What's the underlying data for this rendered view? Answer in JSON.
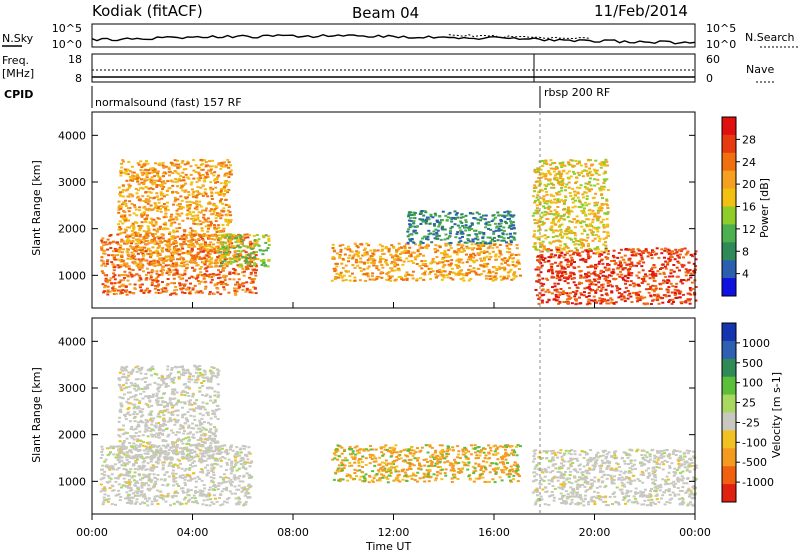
{
  "header": {
    "radar": "Kodiak (fitACF)",
    "beam": "Beam 04",
    "date": "11/Feb/2014"
  },
  "param_panel": {
    "nsky_label": "N.Sky",
    "nsearch_label": "N.Search",
    "noise_ticks_left": [
      "10^5",
      "10^0"
    ],
    "noise_ticks_right": [
      "10^5",
      "10^0"
    ],
    "freq_label_line1": "Freq.",
    "freq_label_line2": "[MHz]",
    "freq_ticks": [
      "18",
      "8"
    ],
    "nave_label": "Nave",
    "nave_ticks": [
      "60",
      "0"
    ],
    "cpid_label": "CPID",
    "cpid_segments": [
      {
        "text": "normalsound (fast) 157 RF",
        "start_hour": 0
      },
      {
        "text": "rbsp 200 RF",
        "start_hour": 18
      }
    ]
  },
  "time_axis": {
    "label": "Time UT",
    "ticks": [
      "00:00",
      "04:00",
      "08:00",
      "12:00",
      "16:00",
      "20:00",
      "00:00"
    ]
  },
  "chart_data": [
    {
      "type": "heatmap",
      "title": "Power",
      "xlabel": "Time UT",
      "ylabel": "Slant Range [km]",
      "xlim": [
        0,
        24
      ],
      "ylim": [
        300,
        4500
      ],
      "y_ticks": [
        1000,
        2000,
        3000,
        4000
      ],
      "colorbar": {
        "label": "Power [dB]",
        "ticks": [
          "4",
          "8",
          "12",
          "16",
          "20",
          "24",
          "28"
        ],
        "colors": [
          "#1010e0",
          "#2a5fb0",
          "#2e8b57",
          "#4caf50",
          "#8fce2a",
          "#f2c010",
          "#f5a020",
          "#f07010",
          "#e83a10",
          "#e01010"
        ]
      },
      "regions": [
        {
          "t": [
            0.3,
            6.5
          ],
          "r": [
            600,
            1900
          ],
          "level": 24
        },
        {
          "t": [
            1.0,
            5.5
          ],
          "r": [
            1200,
            3500
          ],
          "level": 20
        },
        {
          "t": [
            5.0,
            7.0
          ],
          "r": [
            1200,
            1900
          ],
          "level": 12
        },
        {
          "t": [
            9.5,
            17.0
          ],
          "r": [
            900,
            1700
          ],
          "level": 20
        },
        {
          "t": [
            12.5,
            16.8
          ],
          "r": [
            1700,
            2400
          ],
          "level": 8
        },
        {
          "t": [
            17.6,
            24.0
          ],
          "r": [
            400,
            1600
          ],
          "level": 26
        },
        {
          "t": [
            17.5,
            20.5
          ],
          "r": [
            1500,
            3500
          ],
          "level": 16
        }
      ]
    },
    {
      "type": "heatmap",
      "title": "Velocity",
      "xlabel": "Time UT",
      "ylabel": "Slant Range [km]",
      "xlim": [
        0,
        24
      ],
      "ylim": [
        300,
        4500
      ],
      "y_ticks": [
        1000,
        2000,
        3000,
        4000
      ],
      "colorbar": {
        "label": "Velocity [m s-1]",
        "ticks": [
          "1000",
          "500",
          "100",
          "25",
          "-25",
          "-100",
          "-500",
          "-1000"
        ],
        "colors": [
          "#1535b0",
          "#2f5fb0",
          "#2e8b57",
          "#5cbf3a",
          "#a8d860",
          "#c8c8c0",
          "#f2c020",
          "#f59a20",
          "#f06010",
          "#e02010"
        ]
      },
      "regions": [
        {
          "t": [
            0.3,
            6.3
          ],
          "r": [
            500,
            1800
          ],
          "velocity": 0
        },
        {
          "t": [
            1.0,
            5.0
          ],
          "r": [
            1500,
            3500
          ],
          "velocity": 0
        },
        {
          "t": [
            9.5,
            17.0
          ],
          "r": [
            1000,
            1800
          ],
          "velocity": -100
        },
        {
          "t": [
            17.5,
            24.0
          ],
          "r": [
            500,
            1700
          ],
          "velocity": 0
        }
      ]
    }
  ]
}
